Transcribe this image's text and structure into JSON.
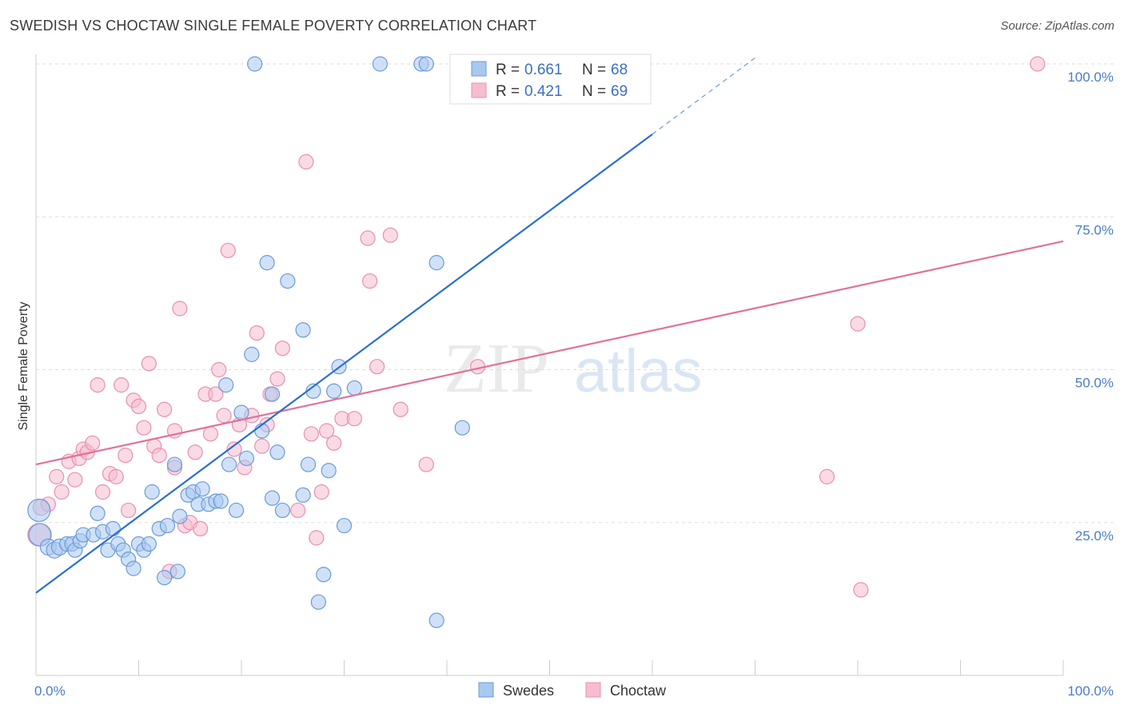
{
  "title": "SWEDISH VS CHOCTAW SINGLE FEMALE POVERTY CORRELATION CHART",
  "source": "Source: ZipAtlas.com",
  "watermark": {
    "zip": "ZIP",
    "atlas": "atlas"
  },
  "colors": {
    "swedes_fill": "#a9c8f0",
    "swedes_stroke": "#6b9bd9",
    "swedes_line": "#2a6fd1",
    "choctaw_fill": "#f6bcd0",
    "choctaw_stroke": "#e890ae",
    "choctaw_line": "#e0729a",
    "grid": "#dddddd",
    "tick_label": "#4a7cc7"
  },
  "legend": {
    "swedes": {
      "r_label": "R = ",
      "r_value": "0.661",
      "n_label": "N = ",
      "n_value": "68"
    },
    "choctaw": {
      "r_label": "R = ",
      "r_value": "0.421",
      "n_label": "N = ",
      "n_value": "69"
    }
  },
  "bottom_legend": {
    "swedes": "Swedes",
    "choctaw": "Choctaw"
  },
  "chart_data": {
    "type": "scatter",
    "title": "SWEDISH VS CHOCTAW SINGLE FEMALE POVERTY CORRELATION CHART",
    "xlabel": "",
    "ylabel": "Single Female Poverty",
    "xlim": [
      0,
      100
    ],
    "ylim": [
      0,
      100
    ],
    "x_tick_labels": [
      "0.0%",
      "100.0%"
    ],
    "y_tick_labels": [
      {
        "value": 25,
        "label": "25.0%"
      },
      {
        "value": 50,
        "label": "50.0%"
      },
      {
        "value": 75,
        "label": "75.0%"
      },
      {
        "value": 100,
        "label": "100.0%"
      }
    ],
    "grid": true,
    "series": [
      {
        "name": "Swedes",
        "r": 0.661,
        "n": 68,
        "trend": {
          "x0": 0,
          "y0": 13.5,
          "x1": 60,
          "y1": 88.5,
          "dash_to_x": 70
        },
        "points": [
          [
            0.3,
            27,
            14
          ],
          [
            0.4,
            23,
            14
          ],
          [
            1.2,
            21,
            10
          ],
          [
            1.8,
            20.5,
            10
          ],
          [
            2.3,
            21,
            10
          ],
          [
            3,
            21.5,
            9
          ],
          [
            3.5,
            21.5,
            9
          ],
          [
            3.8,
            20.5,
            9
          ],
          [
            4.3,
            22,
            9
          ],
          [
            4.6,
            23,
            9
          ],
          [
            5.6,
            23,
            9
          ],
          [
            6,
            26.5,
            9
          ],
          [
            6.5,
            23.5,
            9
          ],
          [
            7,
            20.5,
            9
          ],
          [
            7.5,
            24,
            9
          ],
          [
            8,
            21.5,
            9
          ],
          [
            8.5,
            20.5,
            9
          ],
          [
            9,
            19,
            9
          ],
          [
            9.5,
            17.5,
            9
          ],
          [
            10,
            21.5,
            9
          ],
          [
            10.5,
            20.5,
            9
          ],
          [
            11,
            21.5,
            9
          ],
          [
            11.3,
            30,
            9
          ],
          [
            12,
            24,
            9
          ],
          [
            12.5,
            16,
            9
          ],
          [
            12.8,
            24.5,
            9
          ],
          [
            13.5,
            34.5,
            9
          ],
          [
            13.8,
            17,
            9
          ],
          [
            14,
            26,
            9
          ],
          [
            14.8,
            29.5,
            9
          ],
          [
            15.3,
            30,
            9
          ],
          [
            15.8,
            28,
            9
          ],
          [
            16.2,
            30.5,
            9
          ],
          [
            16.8,
            28,
            9
          ],
          [
            17.5,
            28.5,
            9
          ],
          [
            18,
            28.5,
            9
          ],
          [
            18.5,
            47.5,
            9
          ],
          [
            18.8,
            34.5,
            9
          ],
          [
            19.5,
            27,
            9
          ],
          [
            20,
            43,
            9
          ],
          [
            20.5,
            35.5,
            9
          ],
          [
            21,
            52.5,
            9
          ],
          [
            21.3,
            100,
            9
          ],
          [
            22,
            40,
            9
          ],
          [
            22.5,
            67.5,
            9
          ],
          [
            23,
            29,
            9
          ],
          [
            23.5,
            36.5,
            9
          ],
          [
            24,
            27,
            9
          ],
          [
            24.5,
            64.5,
            9
          ],
          [
            23,
            46,
            9
          ],
          [
            26,
            56.5,
            9
          ],
          [
            26,
            29.5,
            9
          ],
          [
            26.5,
            34.5,
            9
          ],
          [
            27,
            46.5,
            9
          ],
          [
            27.5,
            12,
            9
          ],
          [
            28,
            16.5,
            9
          ],
          [
            28.5,
            33.5,
            9
          ],
          [
            29,
            46.5,
            9
          ],
          [
            29.5,
            50.5,
            9
          ],
          [
            30,
            24.5,
            9
          ],
          [
            31,
            47,
            9
          ],
          [
            33.5,
            100,
            9
          ],
          [
            37.5,
            100,
            9
          ],
          [
            38,
            100,
            9
          ],
          [
            39,
            67.5,
            9
          ],
          [
            41.5,
            40.5,
            9
          ],
          [
            44,
            100,
            9
          ],
          [
            39,
            9,
            9
          ]
        ]
      },
      {
        "name": "Choctaw",
        "r": 0.421,
        "n": 69,
        "trend": {
          "x0": 0,
          "y0": 34.5,
          "x1": 100,
          "y1": 71
        },
        "points": [
          [
            0.3,
            23,
            14
          ],
          [
            0.5,
            27.5,
            10
          ],
          [
            1.2,
            28,
            9
          ],
          [
            2,
            32.5,
            9
          ],
          [
            2.5,
            30,
            9
          ],
          [
            3.2,
            35,
            9
          ],
          [
            3.8,
            32,
            9
          ],
          [
            4.2,
            35.5,
            9
          ],
          [
            4.6,
            37,
            9
          ],
          [
            5,
            36.5,
            9
          ],
          [
            5.5,
            38,
            9
          ],
          [
            6,
            47.5,
            9
          ],
          [
            6.5,
            30,
            9
          ],
          [
            7.2,
            33,
            9
          ],
          [
            7.8,
            32.5,
            9
          ],
          [
            8.3,
            47.5,
            9
          ],
          [
            8.7,
            36,
            9
          ],
          [
            9,
            27,
            9
          ],
          [
            9.5,
            45,
            9
          ],
          [
            10,
            44,
            9
          ],
          [
            10.5,
            40.5,
            9
          ],
          [
            11,
            51,
            9
          ],
          [
            11.5,
            37.5,
            9
          ],
          [
            12,
            36,
            9
          ],
          [
            12.5,
            43.5,
            9
          ],
          [
            13,
            17,
            9
          ],
          [
            13.5,
            40,
            9
          ],
          [
            14,
            60,
            9
          ],
          [
            14.5,
            24.5,
            9
          ],
          [
            15,
            25,
            9
          ],
          [
            15.5,
            36.5,
            9
          ],
          [
            16,
            24,
            9
          ],
          [
            16.5,
            46,
            9
          ],
          [
            17,
            39.5,
            9
          ],
          [
            17.8,
            50,
            9
          ],
          [
            18.3,
            42.5,
            9
          ],
          [
            18.7,
            69.5,
            9
          ],
          [
            19.3,
            37,
            9
          ],
          [
            19.8,
            41,
            9
          ],
          [
            20.3,
            34,
            9
          ],
          [
            21,
            42.5,
            9
          ],
          [
            21.5,
            56,
            9
          ],
          [
            22.5,
            41,
            9
          ],
          [
            22.8,
            46,
            9
          ],
          [
            23.5,
            48.5,
            9
          ],
          [
            24,
            53.5,
            9
          ],
          [
            25.5,
            27,
            9
          ],
          [
            26.3,
            84,
            9
          ],
          [
            26.8,
            39.5,
            9
          ],
          [
            27.3,
            22.5,
            9
          ],
          [
            27.8,
            30,
            9
          ],
          [
            28.3,
            40,
            9
          ],
          [
            29,
            38,
            9
          ],
          [
            29.8,
            42,
            9
          ],
          [
            32.3,
            71.5,
            9
          ],
          [
            32.5,
            64.5,
            9
          ],
          [
            33.2,
            50.5,
            9
          ],
          [
            34.5,
            72,
            9
          ],
          [
            35.5,
            43.5,
            9
          ],
          [
            38,
            34.5,
            9
          ],
          [
            43,
            50.5,
            9
          ],
          [
            77,
            32.5,
            9
          ],
          [
            80,
            57.5,
            9
          ],
          [
            80.3,
            14,
            9
          ],
          [
            97.5,
            100,
            9
          ],
          [
            22,
            37.5,
            9
          ],
          [
            13.5,
            34,
            9
          ],
          [
            17.5,
            46,
            9
          ],
          [
            31,
            42,
            9
          ]
        ]
      }
    ]
  }
}
